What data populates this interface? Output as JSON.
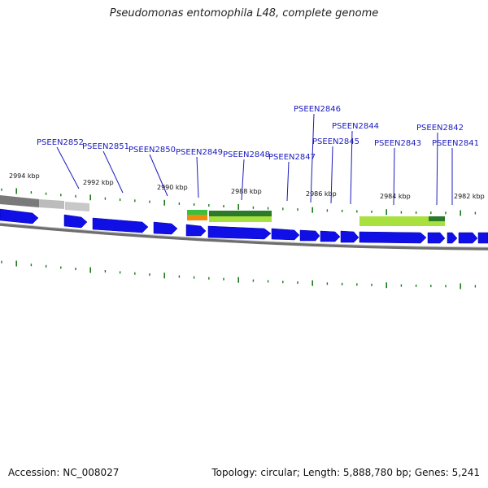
{
  "title": "Pseudomonas entomophila L48, complete genome",
  "accession_text": "Accession: NC_008027",
  "summary_text": "Topology: circular; Length: 5,888,780 bp; Genes: 5,241",
  "scale": {
    "ticks": [
      {
        "label": "2994 kbp"
      },
      {
        "label": "2992 kbp"
      },
      {
        "label": "2990 kbp"
      },
      {
        "label": "2988 kbp"
      },
      {
        "label": "2986 kbp"
      },
      {
        "label": "2984 kbp"
      },
      {
        "label": "2982 kbp"
      }
    ]
  },
  "genes": [
    {
      "name": "PSEEN2852"
    },
    {
      "name": "PSEEN2851"
    },
    {
      "name": "PSEEN2850"
    },
    {
      "name": "PSEEN2849"
    },
    {
      "name": "PSEEN2848"
    },
    {
      "name": "PSEEN2847"
    },
    {
      "name": "PSEEN2846"
    },
    {
      "name": "PSEEN2845"
    },
    {
      "name": "PSEEN2844"
    },
    {
      "name": "PSEEN2843"
    },
    {
      "name": "PSEEN2842"
    },
    {
      "name": "PSEEN2841"
    }
  ],
  "colors": {
    "gene_arrow": "#1010e6",
    "gene_label": "#1b1bbf",
    "backbone": "#808080",
    "tick": "#1a7a1a",
    "feature_light_green": "#a8e040",
    "feature_dark_green": "#2a8a2a",
    "feature_orange": "#f08a10",
    "feature_gray": "#aaaaaa"
  }
}
